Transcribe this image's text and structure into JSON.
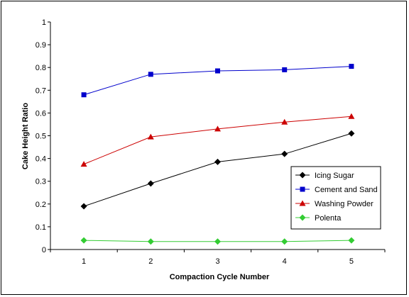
{
  "chart_data": {
    "type": "line",
    "title": "",
    "xlabel": "Compaction Cycle Number",
    "ylabel": "Cake Height Ratio",
    "x": [
      1,
      2,
      3,
      4,
      5
    ],
    "xlim": [
      0.5,
      5.5
    ],
    "ylim": [
      0,
      1
    ],
    "y_ticks": [
      0,
      0.1,
      0.2,
      0.3,
      0.4,
      0.5,
      0.6,
      0.7,
      0.8,
      0.9,
      1
    ],
    "y_tick_labels": [
      "0",
      "0.1",
      "0.2",
      "0.3",
      "0.4",
      "0.5",
      "0.6",
      "0.7",
      "0.8",
      "0.9",
      "1"
    ],
    "x_tick_labels": [
      "1",
      "2",
      "3",
      "4",
      "5"
    ],
    "grid": false,
    "legend_position": "right",
    "series": [
      {
        "name": "Icing Sugar",
        "values": [
          0.19,
          0.29,
          0.385,
          0.42,
          0.51
        ],
        "color": "#000000",
        "marker": "diamond"
      },
      {
        "name": "Cement and Sand",
        "values": [
          0.68,
          0.77,
          0.785,
          0.79,
          0.805
        ],
        "color": "#0000cc",
        "marker": "square"
      },
      {
        "name": "Washing Powder",
        "values": [
          0.375,
          0.495,
          0.53,
          0.56,
          0.585
        ],
        "color": "#cc0000",
        "marker": "triangle"
      },
      {
        "name": "Polenta",
        "values": [
          0.04,
          0.035,
          0.035,
          0.035,
          0.04
        ],
        "color": "#33cc33",
        "marker": "diamond"
      }
    ]
  }
}
